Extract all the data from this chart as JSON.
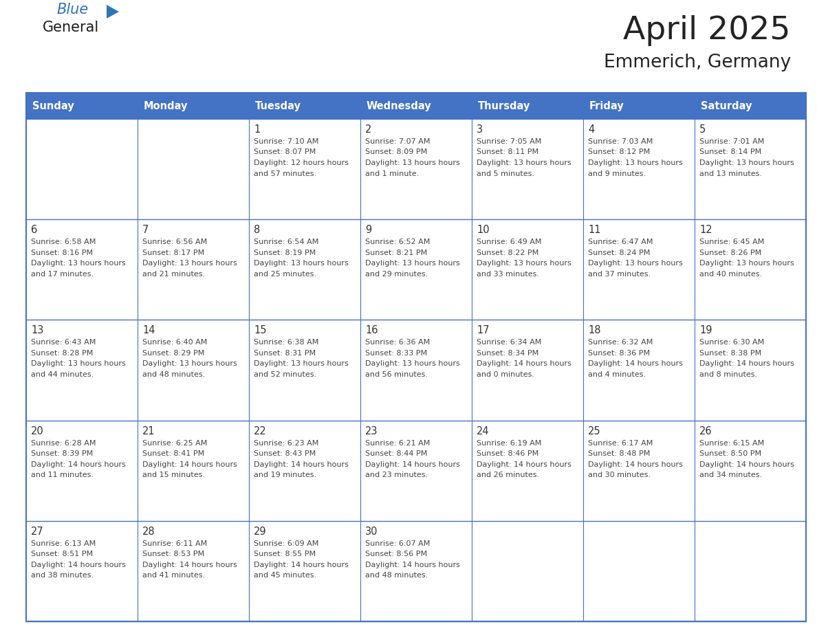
{
  "title": "April 2025",
  "subtitle": "Emmerich, Germany",
  "days_of_week": [
    "Sunday",
    "Monday",
    "Tuesday",
    "Wednesday",
    "Thursday",
    "Friday",
    "Saturday"
  ],
  "header_bg": "#4472C4",
  "header_text": "#FFFFFF",
  "cell_bg_light": "#FFFFFF",
  "border_color": "#4472C4",
  "day_num_color": "#333333",
  "text_color": "#444444",
  "title_color": "#222222",
  "logo_general_color": "#1a1a1a",
  "logo_blue_color": "#2E75B6",
  "calendar_data": [
    [
      null,
      null,
      {
        "day": 1,
        "sunrise": "7:10 AM",
        "sunset": "8:07 PM",
        "daylight": "12 hours and 57 minutes."
      },
      {
        "day": 2,
        "sunrise": "7:07 AM",
        "sunset": "8:09 PM",
        "daylight": "13 hours and 1 minute."
      },
      {
        "day": 3,
        "sunrise": "7:05 AM",
        "sunset": "8:11 PM",
        "daylight": "13 hours and 5 minutes."
      },
      {
        "day": 4,
        "sunrise": "7:03 AM",
        "sunset": "8:12 PM",
        "daylight": "13 hours and 9 minutes."
      },
      {
        "day": 5,
        "sunrise": "7:01 AM",
        "sunset": "8:14 PM",
        "daylight": "13 hours and 13 minutes."
      }
    ],
    [
      {
        "day": 6,
        "sunrise": "6:58 AM",
        "sunset": "8:16 PM",
        "daylight": "13 hours and 17 minutes."
      },
      {
        "day": 7,
        "sunrise": "6:56 AM",
        "sunset": "8:17 PM",
        "daylight": "13 hours and 21 minutes."
      },
      {
        "day": 8,
        "sunrise": "6:54 AM",
        "sunset": "8:19 PM",
        "daylight": "13 hours and 25 minutes."
      },
      {
        "day": 9,
        "sunrise": "6:52 AM",
        "sunset": "8:21 PM",
        "daylight": "13 hours and 29 minutes."
      },
      {
        "day": 10,
        "sunrise": "6:49 AM",
        "sunset": "8:22 PM",
        "daylight": "13 hours and 33 minutes."
      },
      {
        "day": 11,
        "sunrise": "6:47 AM",
        "sunset": "8:24 PM",
        "daylight": "13 hours and 37 minutes."
      },
      {
        "day": 12,
        "sunrise": "6:45 AM",
        "sunset": "8:26 PM",
        "daylight": "13 hours and 40 minutes."
      }
    ],
    [
      {
        "day": 13,
        "sunrise": "6:43 AM",
        "sunset": "8:28 PM",
        "daylight": "13 hours and 44 minutes."
      },
      {
        "day": 14,
        "sunrise": "6:40 AM",
        "sunset": "8:29 PM",
        "daylight": "13 hours and 48 minutes."
      },
      {
        "day": 15,
        "sunrise": "6:38 AM",
        "sunset": "8:31 PM",
        "daylight": "13 hours and 52 minutes."
      },
      {
        "day": 16,
        "sunrise": "6:36 AM",
        "sunset": "8:33 PM",
        "daylight": "13 hours and 56 minutes."
      },
      {
        "day": 17,
        "sunrise": "6:34 AM",
        "sunset": "8:34 PM",
        "daylight": "14 hours and 0 minutes."
      },
      {
        "day": 18,
        "sunrise": "6:32 AM",
        "sunset": "8:36 PM",
        "daylight": "14 hours and 4 minutes."
      },
      {
        "day": 19,
        "sunrise": "6:30 AM",
        "sunset": "8:38 PM",
        "daylight": "14 hours and 8 minutes."
      }
    ],
    [
      {
        "day": 20,
        "sunrise": "6:28 AM",
        "sunset": "8:39 PM",
        "daylight": "14 hours and 11 minutes."
      },
      {
        "day": 21,
        "sunrise": "6:25 AM",
        "sunset": "8:41 PM",
        "daylight": "14 hours and 15 minutes."
      },
      {
        "day": 22,
        "sunrise": "6:23 AM",
        "sunset": "8:43 PM",
        "daylight": "14 hours and 19 minutes."
      },
      {
        "day": 23,
        "sunrise": "6:21 AM",
        "sunset": "8:44 PM",
        "daylight": "14 hours and 23 minutes."
      },
      {
        "day": 24,
        "sunrise": "6:19 AM",
        "sunset": "8:46 PM",
        "daylight": "14 hours and 26 minutes."
      },
      {
        "day": 25,
        "sunrise": "6:17 AM",
        "sunset": "8:48 PM",
        "daylight": "14 hours and 30 minutes."
      },
      {
        "day": 26,
        "sunrise": "6:15 AM",
        "sunset": "8:50 PM",
        "daylight": "14 hours and 34 minutes."
      }
    ],
    [
      {
        "day": 27,
        "sunrise": "6:13 AM",
        "sunset": "8:51 PM",
        "daylight": "14 hours and 38 minutes."
      },
      {
        "day": 28,
        "sunrise": "6:11 AM",
        "sunset": "8:53 PM",
        "daylight": "14 hours and 41 minutes."
      },
      {
        "day": 29,
        "sunrise": "6:09 AM",
        "sunset": "8:55 PM",
        "daylight": "14 hours and 45 minutes."
      },
      {
        "day": 30,
        "sunrise": "6:07 AM",
        "sunset": "8:56 PM",
        "daylight": "14 hours and 48 minutes."
      },
      null,
      null,
      null
    ]
  ]
}
